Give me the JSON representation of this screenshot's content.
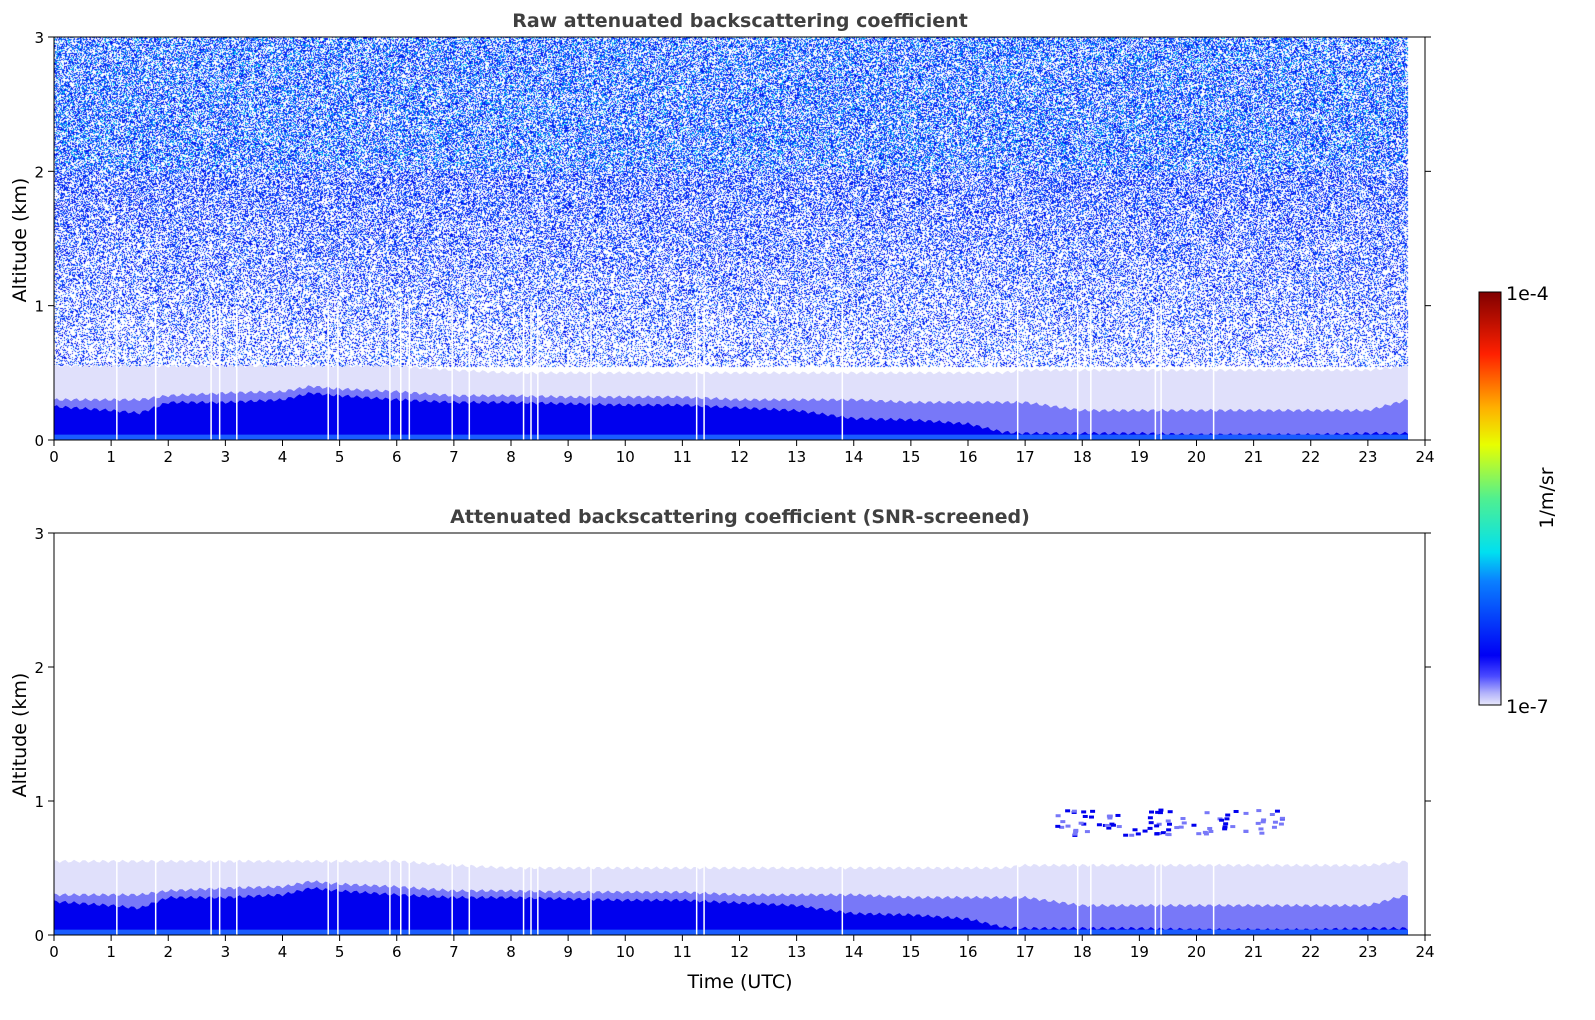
{
  "chart_data": [
    {
      "type": "heatmap",
      "title": "Raw attenuated backscattering coefficient",
      "xlabel": "",
      "ylabel": "Altitude (km)",
      "xlim": [
        0,
        24
      ],
      "ylim": [
        0,
        3
      ],
      "xticks": [
        0,
        1,
        2,
        3,
        4,
        5,
        6,
        7,
        8,
        9,
        10,
        11,
        12,
        13,
        14,
        15,
        16,
        17,
        18,
        19,
        20,
        21,
        22,
        23,
        24
      ],
      "yticks": [
        0,
        1,
        2,
        3
      ],
      "noise_aloft": true
    },
    {
      "type": "heatmap",
      "title": "Attenuated backscattering coefficient (SNR-screened)",
      "xlabel": "Time (UTC)",
      "ylabel": "Altitude (km)",
      "xlim": [
        0,
        24
      ],
      "ylim": [
        0,
        3
      ],
      "xticks": [
        0,
        1,
        2,
        3,
        4,
        5,
        6,
        7,
        8,
        9,
        10,
        11,
        12,
        13,
        14,
        15,
        16,
        17,
        18,
        19,
        20,
        21,
        22,
        23,
        24
      ],
      "yticks": [
        0,
        1,
        2,
        3
      ],
      "noise_aloft": false
    }
  ],
  "layers": {
    "data_end_hour": 23.7,
    "time": [
      0,
      1,
      1.5,
      2,
      3,
      4,
      4.5,
      5,
      6,
      7,
      8,
      9,
      10,
      11,
      12,
      13,
      14,
      15,
      16,
      16.6,
      17,
      18,
      19,
      20,
      21,
      22,
      23,
      23.7
    ],
    "dense_layer_top_km": [
      0.25,
      0.22,
      0.2,
      0.28,
      0.28,
      0.3,
      0.35,
      0.33,
      0.3,
      0.28,
      0.28,
      0.27,
      0.26,
      0.26,
      0.24,
      0.22,
      0.16,
      0.15,
      0.12,
      0.06,
      0.05,
      0.05,
      0.05,
      0.04,
      0.04,
      0.04,
      0.05,
      0.05
    ],
    "mid_layer_top_km": [
      0.3,
      0.3,
      0.3,
      0.33,
      0.35,
      0.36,
      0.4,
      0.38,
      0.36,
      0.33,
      0.33,
      0.32,
      0.32,
      0.32,
      0.3,
      0.3,
      0.3,
      0.28,
      0.28,
      0.28,
      0.28,
      0.22,
      0.22,
      0.22,
      0.22,
      0.22,
      0.22,
      0.3
    ],
    "faint_layer_top_km": [
      0.55,
      0.55,
      0.55,
      0.55,
      0.55,
      0.55,
      0.55,
      0.55,
      0.55,
      0.52,
      0.5,
      0.5,
      0.5,
      0.5,
      0.5,
      0.5,
      0.5,
      0.5,
      0.5,
      0.5,
      0.52,
      0.52,
      0.52,
      0.52,
      0.52,
      0.52,
      0.52,
      0.55
    ],
    "gap_hours": [
      1.1,
      1.78,
      2.75,
      2.9,
      3.2,
      4.8,
      4.97,
      5.88,
      6.07,
      6.22,
      6.97,
      7.27,
      8.22,
      8.35,
      8.47,
      9.4,
      11.25,
      11.38,
      13.8,
      16.87,
      17.92,
      18.15,
      19.28,
      19.38,
      20.3
    ]
  },
  "colorbar": {
    "label": "1/m/sr",
    "min_label": "1e-7",
    "max_label": "1e-4",
    "scale": "log",
    "colormap": "jet-like (white-lavender low)"
  },
  "colors": {
    "dense": "#0000ee",
    "mid": "#7878f8",
    "faint": "#e0e0fb",
    "ground": "#1a5cff"
  }
}
